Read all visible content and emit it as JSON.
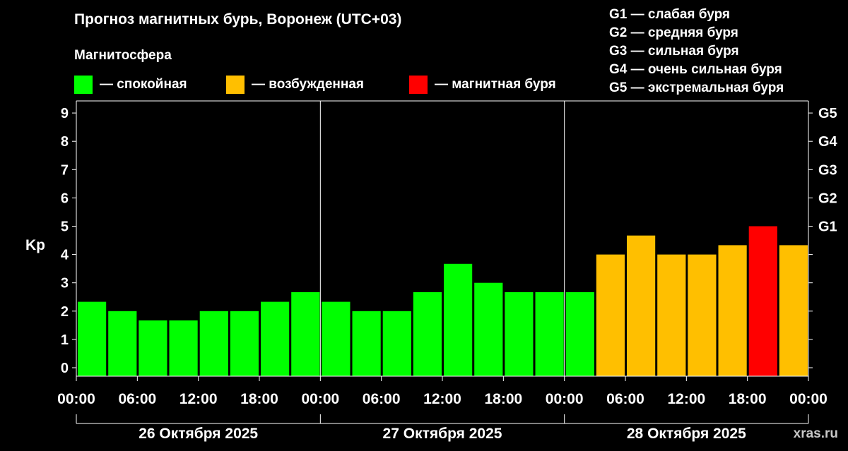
{
  "title": "Прогноз магнитных бурь, Воронеж (UTC+03)",
  "subtitle": "Магнитосфера",
  "legend": [
    {
      "label": "— спокойная",
      "color": "#00ff00"
    },
    {
      "label": "— возбужденная",
      "color": "#ffbf00"
    },
    {
      "label": "— магнитная буря",
      "color": "#ff0000"
    }
  ],
  "g_legend": [
    "G1 — слабая буря",
    "G2 — средняя буря",
    "G3 — сильная буря",
    "G4 — очень сильная буря",
    "G5 — экстремальная буря"
  ],
  "watermark": "xras.ru",
  "chart_data": {
    "type": "bar",
    "ylabel": "Kp",
    "ylim": [
      0,
      9
    ],
    "y_ticks": [
      0,
      1,
      2,
      3,
      4,
      5,
      6,
      7,
      8,
      9
    ],
    "right_axis_labels": [
      {
        "value": 5,
        "label": "G1"
      },
      {
        "value": 6,
        "label": "G2"
      },
      {
        "value": 7,
        "label": "G3"
      },
      {
        "value": 8,
        "label": "G4"
      },
      {
        "value": 9,
        "label": "G5"
      }
    ],
    "x_tick_labels": [
      "00:00",
      "06:00",
      "12:00",
      "18:00",
      "00:00",
      "06:00",
      "12:00",
      "18:00",
      "00:00",
      "06:00",
      "12:00",
      "18:00",
      "00:00"
    ],
    "days": [
      "26 Октября 2025",
      "27 Октября 2025",
      "28 Октября 2025"
    ],
    "interval_hours": 3,
    "values": [
      2.33,
      2.0,
      1.67,
      1.67,
      2.0,
      2.0,
      2.33,
      2.67,
      2.33,
      2.0,
      2.0,
      2.67,
      3.67,
      3.0,
      2.67,
      2.67,
      2.67,
      4.0,
      4.67,
      4.0,
      4.0,
      4.33,
      5.0,
      4.33
    ],
    "colors": {
      "quiet": "#00ff00",
      "active": "#ffbf00",
      "storm": "#ff0000"
    },
    "grid": false,
    "legend_position": "top"
  }
}
